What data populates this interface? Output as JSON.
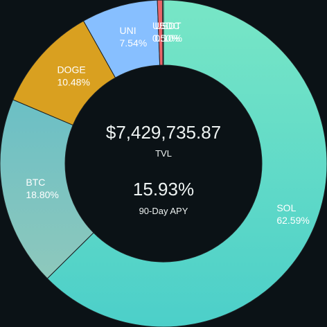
{
  "chart_data": {
    "type": "pie",
    "variant": "donut",
    "slices": [
      {
        "name": "SOL",
        "value": 62.59,
        "label": "62.59%",
        "color": "#5fd9c6"
      },
      {
        "name": "BTC",
        "value": 18.8,
        "label": "18.80%",
        "color": "#74c3c2"
      },
      {
        "name": "DOGE",
        "value": 10.48,
        "label": "10.48%",
        "color": "#d9a020"
      },
      {
        "name": "UNI",
        "value": 7.54,
        "label": "7.54%",
        "color": "#87bfff"
      },
      {
        "name": "USDC",
        "value": 0.5,
        "label": "0.50%",
        "color": "#e8656a"
      },
      {
        "name": "USDT",
        "value": 0.1,
        "label": "0.10%",
        "color": "#b0e0c0"
      }
    ]
  },
  "summary": {
    "tvl_value": "$7,429,735.87",
    "tvl_label": "TVL",
    "apy_value": "15.93%",
    "apy_label": "90-Day APY"
  }
}
